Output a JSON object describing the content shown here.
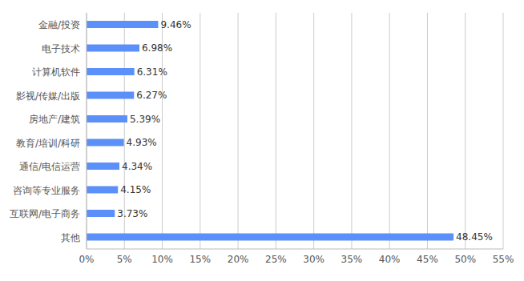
{
  "chart_data": {
    "type": "bar",
    "orientation": "horizontal",
    "categories": [
      "金融/投资",
      "电子技术",
      "计算机软件",
      "影视/传媒/出版",
      "房地产/建筑",
      "教育/培训/科研",
      "通信/电信运营",
      "咨询等专业服务",
      "互联网/电子商务",
      "其他"
    ],
    "values": [
      9.46,
      6.98,
      6.31,
      6.27,
      5.39,
      4.93,
      4.34,
      4.15,
      3.73,
      48.45
    ],
    "value_labels": [
      "9.46%",
      "6.98%",
      "6.31%",
      "6.27%",
      "5.39%",
      "4.93%",
      "4.34%",
      "4.15%",
      "3.73%",
      "48.45%"
    ],
    "data_labels": true,
    "color": "#5b8ff9",
    "xlim": [
      0,
      55
    ],
    "xticks": [
      {
        "value": 0,
        "label": "0%"
      },
      {
        "value": 5,
        "label": "5%"
      },
      {
        "value": 10,
        "label": "10%"
      },
      {
        "value": 15,
        "label": "15%"
      },
      {
        "value": 20,
        "label": "20%"
      },
      {
        "value": 25,
        "label": "25%"
      },
      {
        "value": 30,
        "label": "30%"
      },
      {
        "value": 35,
        "label": "35%"
      },
      {
        "value": 40,
        "label": "40%"
      },
      {
        "value": 45,
        "label": "45%"
      },
      {
        "value": 50,
        "label": "50%"
      },
      {
        "value": 55,
        "label": "55%"
      }
    ],
    "grid": true
  }
}
